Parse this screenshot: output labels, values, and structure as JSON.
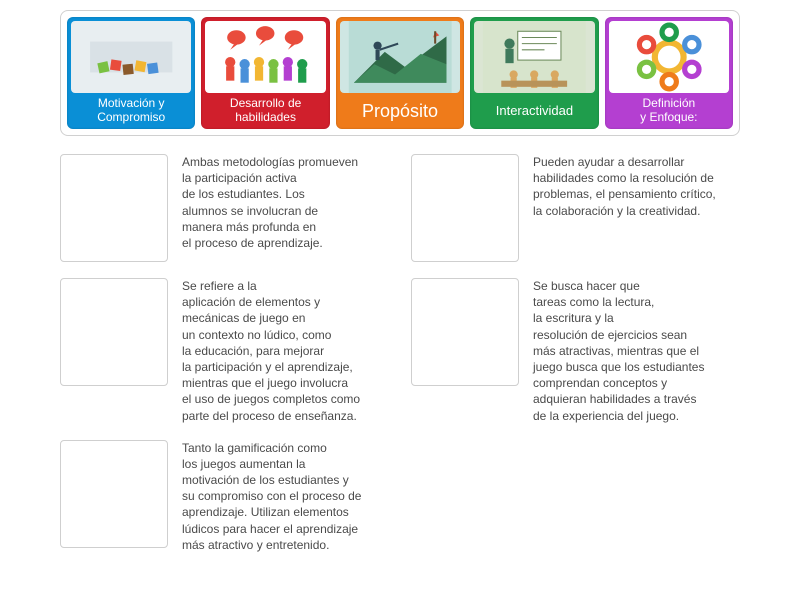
{
  "topbar": {
    "cards": [
      {
        "label": "Motivación y\nCompromiso",
        "color": "#0a8fd6",
        "thumb_bg": "#e8eef1"
      },
      {
        "label": "Desarrollo de\nhabilidades",
        "color": "#d01f2c",
        "thumb_bg": "#ffffff"
      },
      {
        "label": "Propósito",
        "color": "#ef7b1a",
        "thumb_bg": "#cfe6e3"
      },
      {
        "label": "Interactividad",
        "color": "#1f9d4c",
        "thumb_bg": "#dbe5d3"
      },
      {
        "label": "Definición\ny Enfoque:",
        "color": "#b43fd1",
        "thumb_bg": "#ffffff"
      }
    ]
  },
  "descriptions": {
    "col_left": [
      "Ambas metodologías promueven\nla participación activa\nde los estudiantes. Los\nalumnos se involucran de\nmanera más profunda en\nel proceso de aprendizaje.",
      "Se refiere a la\naplicación de elementos y\nmecánicas de juego en\nun contexto no lúdico, como\nla educación, para mejorar\nla participación y el aprendizaje,\nmientras que el juego involucra\nel uso de juegos completos como\nparte del proceso de enseñanza.",
      "Tanto la gamificación como\nlos juegos aumentan la\nmotivación de los estudiantes y\nsu compromiso con el proceso de\naprendizaje. Utilizan elementos\nlúdicos para hacer el aprendizaje\nmás atractivo y entretenido."
    ],
    "col_right": [
      "Pueden ayudar a desarrollar\nhabilidades como la resolución de\nproblemas, el pensamiento crítico,\nla colaboración y la creatividad.",
      "Se busca hacer que\ntareas como la lectura,\nla escritura y la\nresolución de ejercicios sean\nmás atractivas, mientras que el\njuego busca que los estudiantes\ncomprendan conceptos y\nadquieran habilidades a través\nde la experiencia del juego."
    ]
  },
  "styles": {
    "page_bg": "#ffffff",
    "border_color": "#d0d0d0",
    "dropzone_border": "#cfcfcf",
    "text_color": "#4a4a4a",
    "desc_fontsize": 12
  }
}
